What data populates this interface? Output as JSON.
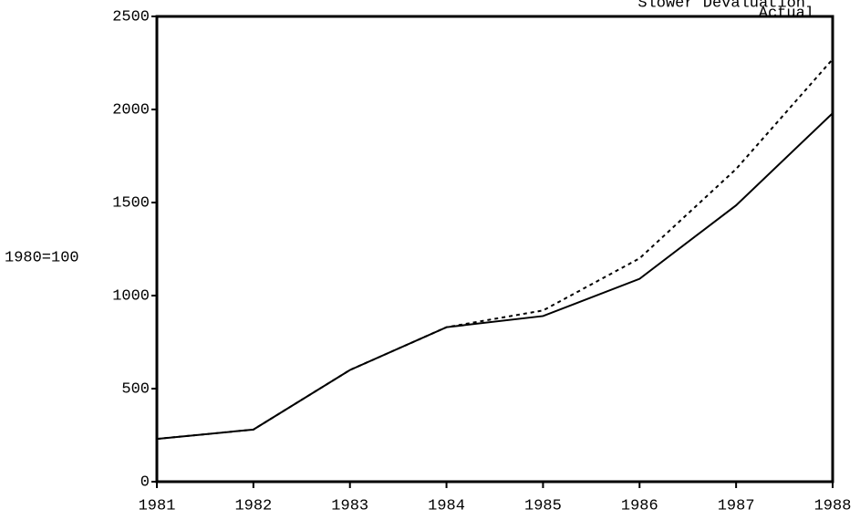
{
  "chart_data": {
    "type": "line",
    "ylabel": "1980=100",
    "x": [
      1981,
      1982,
      1983,
      1984,
      1985,
      1986,
      1987,
      1988
    ],
    "xlim": [
      1981,
      1988
    ],
    "xticks": [
      1981,
      1982,
      1983,
      1984,
      1985,
      1986,
      1987,
      1988
    ],
    "ylim": [
      0,
      2500
    ],
    "yticks": [
      0,
      500,
      1000,
      1500,
      2000,
      2500
    ],
    "grid": false,
    "series": [
      {
        "name": "Slower Devaluation",
        "color": "#000000",
        "dash": true,
        "values": [
          230,
          280,
          600,
          830,
          920,
          1200,
          1680,
          2270
        ]
      },
      {
        "name": "Actual",
        "color": "#000000",
        "dash": false,
        "values": [
          230,
          280,
          600,
          830,
          890,
          1090,
          1485,
          1980
        ]
      }
    ]
  }
}
